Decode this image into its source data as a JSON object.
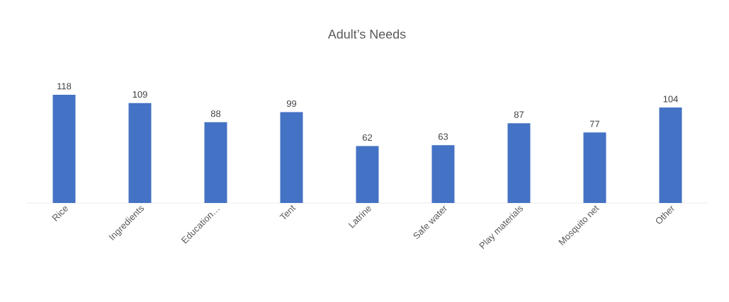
{
  "chart_data": {
    "type": "bar",
    "title": "Adult’s Needs",
    "categories": [
      "Rice",
      "Ingredients",
      "Education…",
      "Tent",
      "Latrine",
      "Safe water",
      "Play materials",
      "Mosquito net",
      "Other"
    ],
    "values": [
      118,
      109,
      88,
      99,
      62,
      63,
      87,
      77,
      104
    ],
    "color": "#4472c4",
    "data_labels": true
  }
}
